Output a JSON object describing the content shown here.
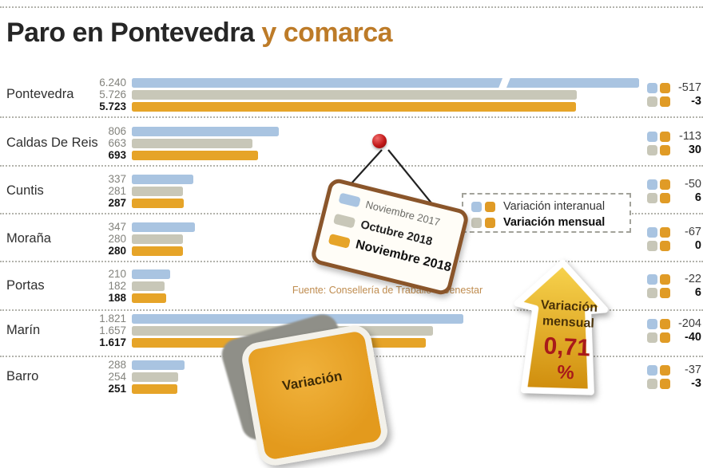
{
  "title": {
    "main": "Paro en Pontevedra",
    "accent": "y comarca"
  },
  "legend_tag": {
    "items": [
      {
        "label": "Noviembre 2017",
        "color": "#a9c4e1",
        "bold": false
      },
      {
        "label": "Octubre 2018",
        "color": "#c8c7b8",
        "bold": true
      },
      {
        "label": "Noviembre 2018",
        "color": "#e6a428",
        "bold": true
      }
    ]
  },
  "variation_legend": {
    "rows": [
      {
        "label": "Variación interanual",
        "swatches": [
          "#a9c4e1",
          "#e09b26"
        ],
        "bold": false
      },
      {
        "label": "Variación mensual",
        "swatches": [
          "#c5c4b6",
          "#e09b26"
        ],
        "bold": true
      }
    ]
  },
  "source": "Fuente: Consellería de Traballo e Benestar",
  "badges": {
    "arrow": {
      "line1": "Variación",
      "line2": "mensual",
      "value": "0,71",
      "unit": "%",
      "direction": "up"
    },
    "bottom_tag": {
      "line1": "Variación"
    }
  },
  "chart_data": {
    "type": "bar",
    "orientation": "horizontal",
    "title": "Paro en Pontevedra y comarca",
    "series": [
      "Noviembre 2017",
      "Octubre 2018",
      "Noviembre 2018"
    ],
    "colors": [
      "#a9c4e1",
      "#c8c7b8",
      "#e6a428"
    ],
    "square_orange": "#e09b26",
    "variation_columns": [
      "Variación interanual",
      "Variación mensual"
    ],
    "rows": [
      {
        "name": "Pontevedra",
        "labels": [
          "6.240",
          "5.726",
          "5.723"
        ],
        "values": [
          6240,
          5726,
          5723
        ],
        "var_interanual": "-517",
        "var_mensual": "-3",
        "overflow": true
      },
      {
        "name": "Caldas De Reis",
        "labels": [
          "806",
          "663",
          "693"
        ],
        "values": [
          806,
          663,
          693
        ],
        "var_interanual": "-113",
        "var_mensual": "30"
      },
      {
        "name": "Cuntis",
        "labels": [
          "337",
          "281",
          "287"
        ],
        "values": [
          337,
          281,
          287
        ],
        "var_interanual": "-50",
        "var_mensual": "6"
      },
      {
        "name": "Moraña",
        "labels": [
          "347",
          "280",
          "280"
        ],
        "values": [
          347,
          280,
          280
        ],
        "var_interanual": "-67",
        "var_mensual": "0"
      },
      {
        "name": "Portas",
        "labels": [
          "210",
          "182",
          "188"
        ],
        "values": [
          210,
          182,
          188
        ],
        "var_interanual": "-22",
        "var_mensual": "6"
      },
      {
        "name": "Marín",
        "labels": [
          "1.821",
          "1.657",
          "1.617"
        ],
        "values": [
          1821,
          1657,
          1617
        ],
        "var_interanual": "-204",
        "var_mensual": "-40"
      },
      {
        "name": "Barro",
        "labels": [
          "288",
          "254",
          "251"
        ],
        "values": [
          288,
          254,
          251
        ],
        "var_interanual": "-37",
        "var_mensual": "-3"
      }
    ]
  }
}
